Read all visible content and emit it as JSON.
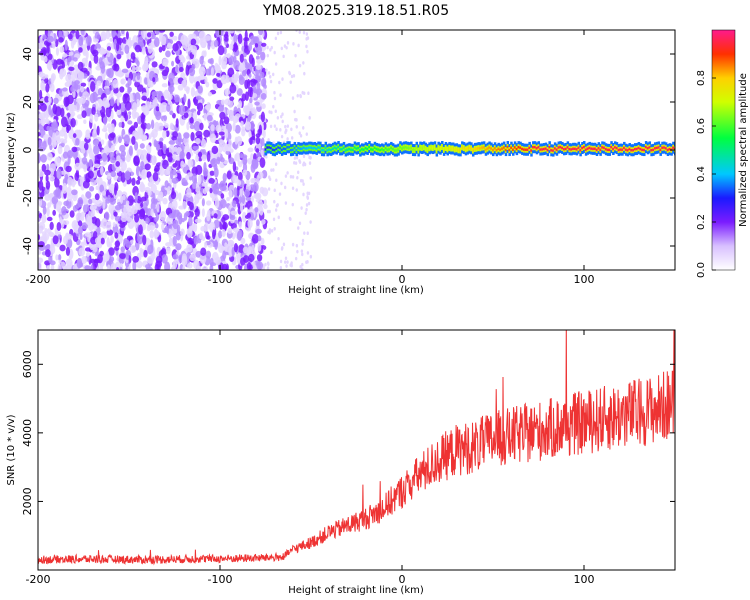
{
  "chart_data": [
    {
      "type": "heatmap",
      "title": "YM08.2025.319.18.51.R05",
      "xlabel": "Height of straight line (km)",
      "ylabel": "Frequency (Hz)",
      "xlim": [
        -200,
        150
      ],
      "ylim": [
        -50,
        50
      ],
      "xticks": [
        -200,
        -100,
        0,
        100
      ],
      "yticks": [
        -40,
        -20,
        0,
        20,
        40
      ],
      "description_series": [
        {
          "name": "noise (scattered spectral energy)",
          "x_range": [
            -200,
            -75
          ],
          "frequency_range": [
            -50,
            50
          ],
          "amplitude": 0.1
        },
        {
          "name": "carrier line",
          "x_range": [
            -75,
            150
          ],
          "frequency": 0.5,
          "amplitude_start": 0.3,
          "amplitude_end": 0.95
        }
      ],
      "colorbar": {
        "label": "Normalized spectral amplitude",
        "range": [
          0,
          1
        ],
        "ticks": [
          0.0,
          0.2,
          0.4,
          0.6,
          0.8
        ]
      }
    },
    {
      "type": "line",
      "title": "",
      "xlabel": "Height of straight line (km)",
      "ylabel": "SNR (10 * v/v)",
      "xlim": [
        -200,
        150
      ],
      "ylim": [
        0,
        7000
      ],
      "xticks": [
        -200,
        -100,
        0,
        100
      ],
      "yticks": [
        2000,
        4000,
        6000
      ],
      "series": [
        {
          "name": "SNR",
          "color": "#ee3333",
          "x": [
            -200,
            -180,
            -160,
            -140,
            -120,
            -100,
            -80,
            -65,
            -60,
            -50,
            -40,
            -30,
            -20,
            -10,
            0,
            10,
            20,
            30,
            40,
            50,
            60,
            70,
            80,
            90,
            100,
            110,
            120,
            130,
            140,
            150
          ],
          "y": [
            300,
            320,
            310,
            300,
            320,
            330,
            350,
            380,
            600,
            800,
            1100,
            1300,
            1500,
            1800,
            2300,
            2800,
            3200,
            3500,
            3600,
            3800,
            3900,
            4000,
            4100,
            4200,
            4300,
            4400,
            4500,
            4600,
            4700,
            4900
          ]
        }
      ]
    }
  ]
}
